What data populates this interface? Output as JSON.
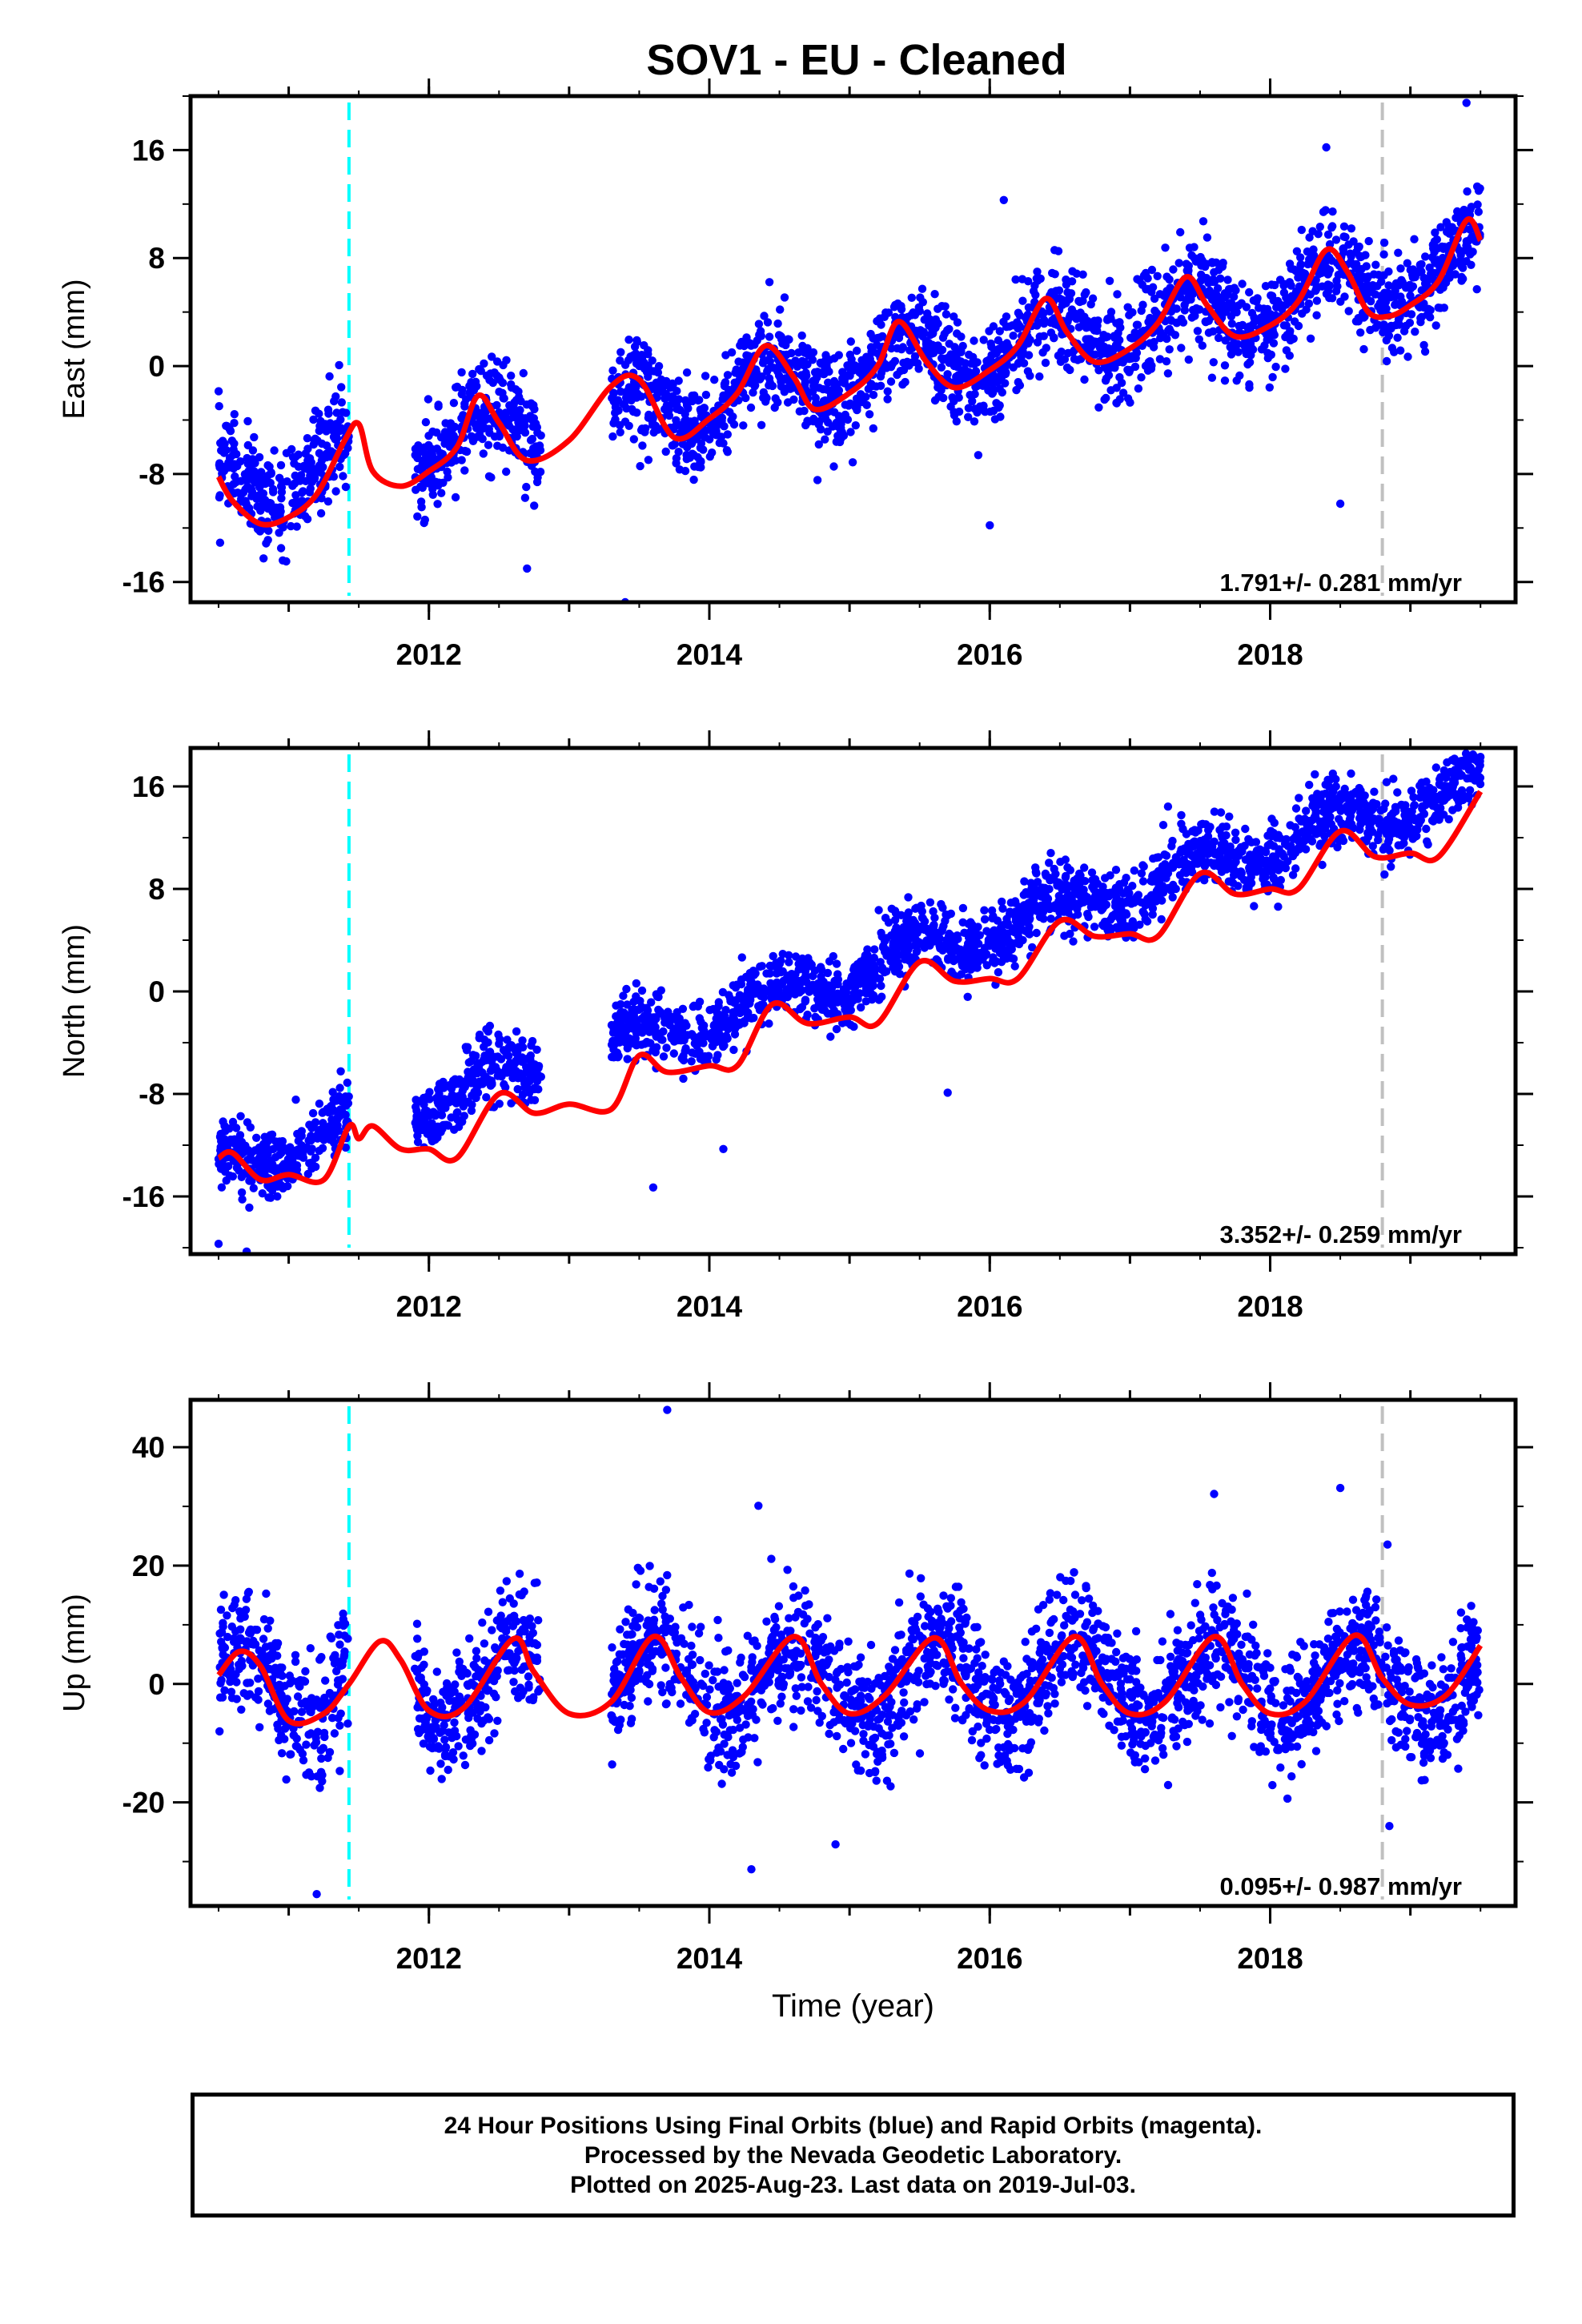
{
  "title": "SOV1  - EU - Cleaned",
  "footer": {
    "line1": "24 Hour Positions Using Final Orbits (blue) and Rapid Orbits (magenta).",
    "line2": "Processed by the Nevada Geodetic Laboratory.",
    "line3": "Plotted on 2025-Aug-23. Last data on 2019-Jul-03."
  },
  "colors": {
    "points": "#0000ff",
    "fit": "#ff0000",
    "equip_change": "#00ffff",
    "data_change": "#c0c0c0"
  },
  "chart_data": [
    {
      "type": "scatter",
      "ylabel": "East (mm)",
      "xlabel": "",
      "xlim": [
        2010.3,
        2019.75
      ],
      "ylim": [
        -17.5,
        20
      ],
      "yticks": [
        -16,
        -8,
        0,
        8,
        16
      ],
      "xticks": [
        2012,
        2014,
        2016,
        2018
      ],
      "rate": "1.791+/- 0.281 mm/yr",
      "vlines": [
        {
          "x": 2011.43,
          "color": "cyan"
        },
        {
          "x": 2018.8,
          "color": "gray"
        }
      ],
      "trend": {
        "start_year": 2010.5,
        "start": -8.7,
        "rate": 1.791,
        "amp": 2.2,
        "phase": 0.42
      },
      "noise": 1.8,
      "segments": [
        [
          2010.5,
          2011.43
        ],
        [
          2011.9,
          2012.8
        ],
        [
          2013.3,
          2019.5
        ]
      ],
      "outliers": [
        [
          2013.4,
          -17.5
        ],
        [
          2016.0,
          -11.8
        ],
        [
          2018.5,
          -10.2
        ],
        [
          2019.4,
          19.5
        ],
        [
          2016.1,
          12.3
        ],
        [
          2018.4,
          16.2
        ],
        [
          2012.7,
          -15.0
        ]
      ],
      "fit": [
        [
          2010.5,
          -8.2
        ],
        [
          2010.6,
          -10.0
        ],
        [
          2010.8,
          -11.7
        ],
        [
          2011.0,
          -11.2
        ],
        [
          2011.2,
          -9.5
        ],
        [
          2011.4,
          -5.5
        ],
        [
          2011.5,
          -4.3
        ],
        [
          2011.6,
          -7.8
        ],
        [
          2011.8,
          -8.9
        ],
        [
          2012.0,
          -7.8
        ],
        [
          2012.2,
          -6.0
        ],
        [
          2012.35,
          -2.2
        ],
        [
          2012.5,
          -4.2
        ],
        [
          2012.7,
          -7.0
        ],
        [
          2013.0,
          -5.5
        ],
        [
          2013.3,
          -1.5
        ],
        [
          2013.5,
          -1.0
        ],
        [
          2013.75,
          -5.3
        ],
        [
          2014.0,
          -3.9
        ],
        [
          2014.2,
          -2.0
        ],
        [
          2014.4,
          1.5
        ],
        [
          2014.6,
          -0.8
        ],
        [
          2014.75,
          -3.2
        ],
        [
          2015.0,
          -2.0
        ],
        [
          2015.2,
          0.0
        ],
        [
          2015.35,
          3.3
        ],
        [
          2015.55,
          0.3
        ],
        [
          2015.75,
          -1.6
        ],
        [
          2016.0,
          -0.3
        ],
        [
          2016.2,
          1.5
        ],
        [
          2016.4,
          5.0
        ],
        [
          2016.55,
          2.5
        ],
        [
          2016.75,
          0.3
        ],
        [
          2017.0,
          1.3
        ],
        [
          2017.2,
          3.2
        ],
        [
          2017.4,
          6.6
        ],
        [
          2017.55,
          4.5
        ],
        [
          2017.75,
          2.2
        ],
        [
          2018.0,
          3.0
        ],
        [
          2018.2,
          4.8
        ],
        [
          2018.4,
          8.6
        ],
        [
          2018.55,
          7.0
        ],
        [
          2018.7,
          4.0
        ],
        [
          2018.85,
          3.7
        ],
        [
          2019.0,
          4.5
        ],
        [
          2019.2,
          6.3
        ],
        [
          2019.4,
          10.8
        ],
        [
          2019.5,
          9.3
        ]
      ]
    },
    {
      "type": "scatter",
      "ylabel": "North (mm)",
      "xlabel": "",
      "xlim": [
        2010.3,
        2019.75
      ],
      "ylim": [
        -20.5,
        19
      ],
      "yticks": [
        -16,
        -8,
        0,
        8,
        16
      ],
      "xticks": [
        2012,
        2014,
        2016,
        2018
      ],
      "rate": "3.352+/- 0.259 mm/yr",
      "vlines": [
        {
          "x": 2011.43,
          "color": "cyan"
        },
        {
          "x": 2018.8,
          "color": "gray"
        }
      ],
      "trend": {
        "start_year": 2010.5,
        "start": -13.8,
        "rate": 3.352,
        "amp": 1.4,
        "phase": 0.45
      },
      "noise": 1.3,
      "segments": [
        [
          2010.5,
          2011.43
        ],
        [
          2011.9,
          2012.8
        ],
        [
          2013.3,
          2019.5
        ]
      ],
      "outliers": [
        [
          2010.5,
          -19.7
        ],
        [
          2010.7,
          -20.3
        ],
        [
          2013.6,
          -15.3
        ],
        [
          2014.1,
          -12.3
        ],
        [
          2015.7,
          -7.9
        ],
        [
          2019.5,
          18.3
        ]
      ],
      "fit": [
        [
          2010.5,
          -13.0
        ],
        [
          2010.6,
          -12.6
        ],
        [
          2010.8,
          -14.7
        ],
        [
          2011.0,
          -14.3
        ],
        [
          2011.25,
          -14.7
        ],
        [
          2011.43,
          -10.5
        ],
        [
          2011.5,
          -11.5
        ],
        [
          2011.6,
          -10.5
        ],
        [
          2011.8,
          -12.3
        ],
        [
          2012.0,
          -12.3
        ],
        [
          2012.2,
          -13.0
        ],
        [
          2012.5,
          -8.0
        ],
        [
          2012.75,
          -9.5
        ],
        [
          2013.0,
          -8.8
        ],
        [
          2013.3,
          -9.2
        ],
        [
          2013.5,
          -5.0
        ],
        [
          2013.7,
          -6.3
        ],
        [
          2014.0,
          -5.8
        ],
        [
          2014.2,
          -5.8
        ],
        [
          2014.45,
          -1.0
        ],
        [
          2014.7,
          -2.5
        ],
        [
          2015.0,
          -2.0
        ],
        [
          2015.2,
          -2.5
        ],
        [
          2015.5,
          2.3
        ],
        [
          2015.75,
          0.8
        ],
        [
          2016.0,
          1.0
        ],
        [
          2016.2,
          1.0
        ],
        [
          2016.5,
          5.5
        ],
        [
          2016.75,
          4.3
        ],
        [
          2017.0,
          4.5
        ],
        [
          2017.2,
          4.3
        ],
        [
          2017.5,
          9.2
        ],
        [
          2017.75,
          7.6
        ],
        [
          2018.0,
          8.0
        ],
        [
          2018.2,
          8.0
        ],
        [
          2018.5,
          12.5
        ],
        [
          2018.75,
          10.5
        ],
        [
          2019.0,
          10.8
        ],
        [
          2019.2,
          10.5
        ],
        [
          2019.5,
          15.6
        ]
      ]
    },
    {
      "type": "scatter",
      "ylabel": "Up (mm)",
      "xlabel": "Time (year)",
      "xlim": [
        2010.3,
        2019.75
      ],
      "ylim": [
        -37.5,
        48
      ],
      "yticks": [
        -20,
        0,
        20,
        40
      ],
      "xticks": [
        2012,
        2014,
        2016,
        2018
      ],
      "rate": "0.095+/- 0.987 mm/yr",
      "vlines": [
        {
          "x": 2011.43,
          "color": "cyan"
        },
        {
          "x": 2018.8,
          "color": "gray"
        }
      ],
      "trend": {
        "start_year": 2010.5,
        "start": 0.0,
        "rate": 0.095,
        "amp": 6.5,
        "phase": 0.62
      },
      "noise": 5.0,
      "segments": [
        [
          2010.5,
          2011.43
        ],
        [
          2011.9,
          2012.8
        ],
        [
          2013.3,
          2019.5
        ]
      ],
      "outliers": [
        [
          2013.7,
          46.3
        ],
        [
          2011.2,
          -35.5
        ],
        [
          2014.3,
          -31.3
        ],
        [
          2014.9,
          -27.1
        ],
        [
          2018.85,
          -24.0
        ],
        [
          2014.35,
          30.1
        ],
        [
          2018.5,
          33.1
        ],
        [
          2017.6,
          32.1
        ]
      ],
      "fit": [
        [
          2010.5,
          1.5
        ],
        [
          2010.65,
          5.5
        ],
        [
          2010.8,
          3.0
        ],
        [
          2011.0,
          -6.2
        ],
        [
          2011.25,
          -5.0
        ],
        [
          2011.43,
          0.0
        ],
        [
          2011.65,
          7.2
        ],
        [
          2011.8,
          4.0
        ],
        [
          2012.0,
          -4.5
        ],
        [
          2012.25,
          -4.0
        ],
        [
          2012.6,
          7.6
        ],
        [
          2012.75,
          2.0
        ],
        [
          2013.0,
          -5.0
        ],
        [
          2013.3,
          -3.0
        ],
        [
          2013.6,
          8.0
        ],
        [
          2013.8,
          1.0
        ],
        [
          2014.0,
          -4.8
        ],
        [
          2014.25,
          -2.0
        ],
        [
          2014.6,
          8.0
        ],
        [
          2014.8,
          0.0
        ],
        [
          2015.0,
          -5.0
        ],
        [
          2015.25,
          -2.0
        ],
        [
          2015.6,
          7.8
        ],
        [
          2015.8,
          0.0
        ],
        [
          2016.0,
          -4.5
        ],
        [
          2016.25,
          -3.0
        ],
        [
          2016.6,
          8.0
        ],
        [
          2016.8,
          0.0
        ],
        [
          2017.0,
          -5.0
        ],
        [
          2017.25,
          -3.0
        ],
        [
          2017.6,
          8.0
        ],
        [
          2017.8,
          0.0
        ],
        [
          2018.0,
          -5.0
        ],
        [
          2018.25,
          -3.0
        ],
        [
          2018.6,
          8.2
        ],
        [
          2018.8,
          1.0
        ],
        [
          2019.0,
          -3.5
        ],
        [
          2019.25,
          -2.0
        ],
        [
          2019.5,
          6.5
        ]
      ]
    }
  ]
}
